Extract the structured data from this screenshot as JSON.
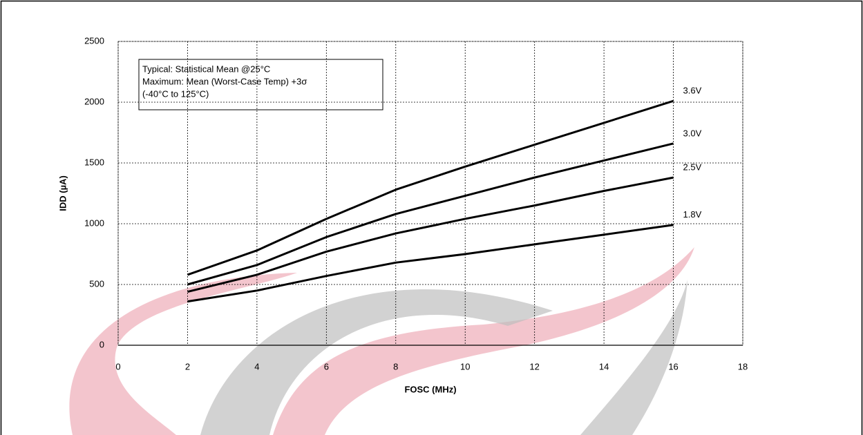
{
  "chart_data": {
    "type": "line",
    "x_label": "FOSC (MHz)",
    "y_label": "IDD (µA)",
    "annotation": [
      "Typical: Statistical Mean @25°C",
      "Maximum: Mean (Worst-Case Temp) +3σ",
      "(-40°C to 125°C)"
    ],
    "x": [
      2,
      4,
      6,
      8,
      10,
      12,
      14,
      16
    ],
    "series": [
      {
        "name": "3.6V",
        "color": "#000000",
        "values": [
          580,
          780,
          1040,
          1280,
          1470,
          1650,
          1830,
          2010
        ]
      },
      {
        "name": "3.0V",
        "color": "#000000",
        "values": [
          500,
          660,
          890,
          1080,
          1230,
          1380,
          1520,
          1660
        ]
      },
      {
        "name": "2.5V",
        "color": "#000000",
        "values": [
          440,
          580,
          770,
          920,
          1040,
          1150,
          1270,
          1380
        ]
      },
      {
        "name": "1.8V",
        "color": "#000000",
        "values": [
          360,
          450,
          570,
          680,
          750,
          830,
          910,
          990
        ]
      }
    ],
    "xlim": [
      0,
      18
    ],
    "xticks": [
      0,
      2,
      4,
      6,
      8,
      10,
      12,
      14,
      16,
      18
    ],
    "ylim": [
      0,
      2500
    ],
    "yticks": [
      0,
      500,
      1000,
      1500,
      2000,
      2500
    ],
    "grid": true
  }
}
